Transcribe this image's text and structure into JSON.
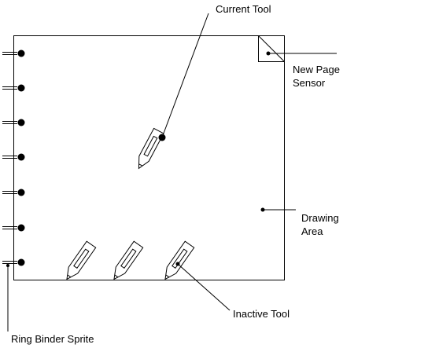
{
  "labels": {
    "current_tool": "Current Tool",
    "new_page_sensor_line1": "New Page",
    "new_page_sensor_line2": "Sensor",
    "drawing_area_line1": "Drawing",
    "drawing_area_line2": "Area",
    "inactive_tool": "Inactive Tool",
    "ring_binder_sprite": "Ring Binder Sprite"
  },
  "icons": {
    "pencil": "pencil-icon",
    "ring": "binder-ring-icon",
    "sensor": "page-corner-sensor-icon"
  },
  "colors": {
    "stroke": "#000000",
    "background": "#ffffff"
  }
}
